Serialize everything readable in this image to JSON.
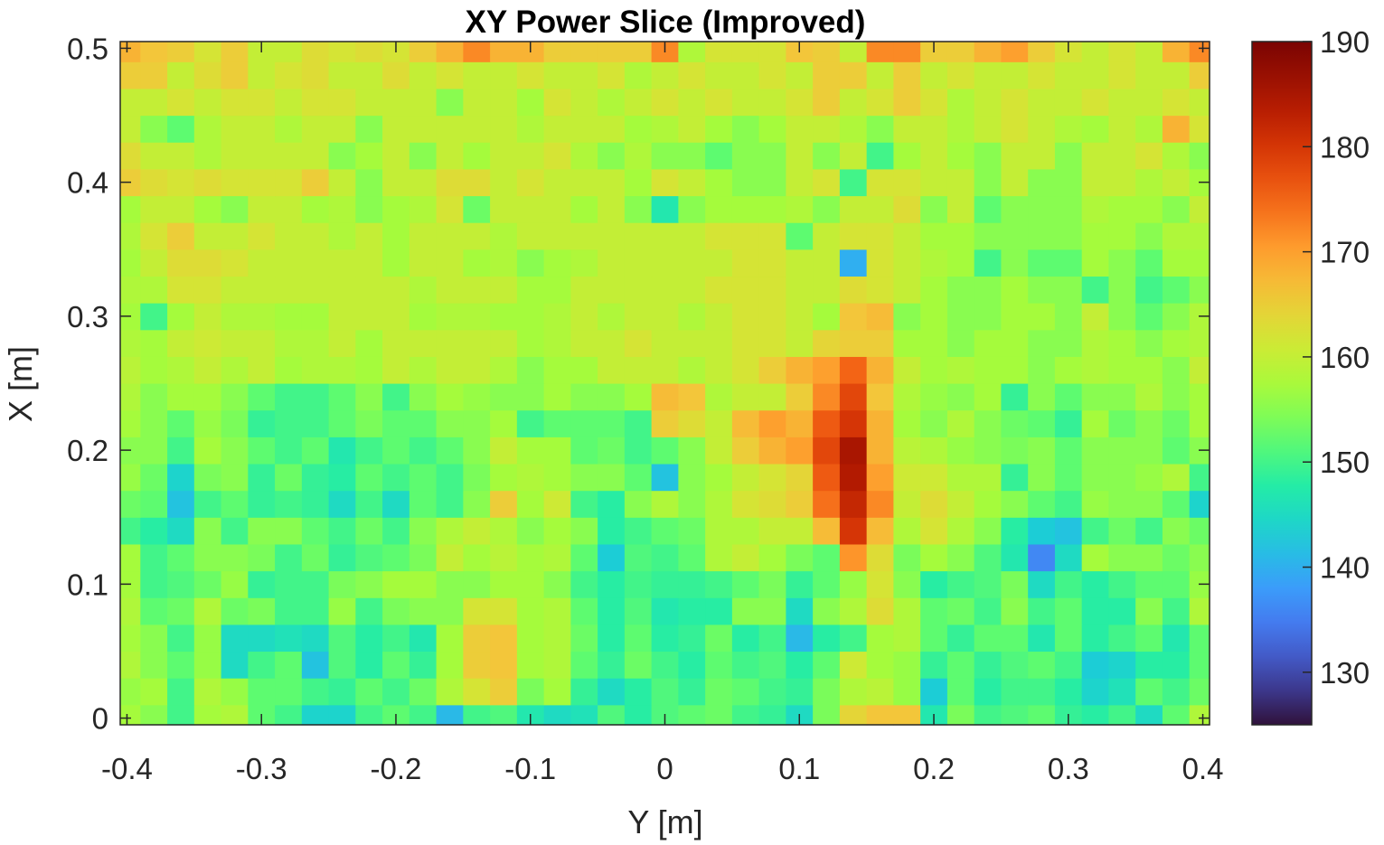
{
  "chart_data": {
    "type": "heatmap",
    "title": "XY Power Slice (Improved)",
    "xlabel": "Y [m]",
    "ylabel": "X [m]",
    "xlim": [
      -0.405,
      0.405
    ],
    "ylim": [
      -0.005,
      0.505
    ],
    "x_ticks": [
      -0.4,
      -0.3,
      -0.2,
      -0.1,
      0,
      0.1,
      0.2,
      0.3,
      0.4
    ],
    "x_tick_labels": [
      "-0.4",
      "-0.3",
      "-0.2",
      "-0.1",
      "0",
      "0.1",
      "0.2",
      "0.3",
      "0.4"
    ],
    "y_ticks": [
      0,
      0.1,
      0.2,
      0.3,
      0.4,
      0.5
    ],
    "y_tick_labels": [
      "0",
      "0.1",
      "0.2",
      "0.3",
      "0.4",
      "0.5"
    ],
    "colorbar": {
      "colormap": "turbo",
      "clim": [
        125,
        190
      ],
      "ticks": [
        130,
        140,
        150,
        160,
        170,
        180,
        190
      ],
      "tick_labels": [
        "130",
        "140",
        "150",
        "160",
        "170",
        "180",
        "190"
      ]
    },
    "grid": false,
    "grid_step": 0.02,
    "x_centers": [
      -0.4,
      -0.38,
      -0.36,
      -0.34,
      -0.32,
      -0.3,
      -0.28,
      -0.26,
      -0.24,
      -0.22,
      -0.2,
      -0.18,
      -0.16,
      -0.14,
      -0.12,
      -0.1,
      -0.08,
      -0.06,
      -0.04,
      -0.02,
      0,
      0.02,
      0.04,
      0.06,
      0.08,
      0.1,
      0.12,
      0.14,
      0.16,
      0.18,
      0.2,
      0.22,
      0.24,
      0.26,
      0.28,
      0.3,
      0.32,
      0.34,
      0.36,
      0.38,
      0.4
    ],
    "y_centers": [
      0,
      0.02,
      0.04,
      0.06,
      0.08,
      0.1,
      0.12,
      0.14,
      0.16,
      0.18,
      0.2,
      0.22,
      0.24,
      0.26,
      0.28,
      0.3,
      0.32,
      0.34,
      0.36,
      0.38,
      0.4,
      0.42,
      0.44,
      0.46,
      0.48,
      0.5
    ],
    "values": [
      [
        157,
        155,
        150,
        157,
        158,
        152,
        150,
        144,
        144,
        150,
        152,
        150,
        141,
        150,
        151,
        147,
        145,
        146,
        151,
        148,
        151,
        152,
        153,
        150,
        149,
        145,
        154,
        164,
        166,
        166,
        147,
        154,
        150,
        151,
        152,
        149,
        148,
        150,
        145,
        152,
        158
      ],
      [
        156,
        157,
        150,
        158,
        156,
        152,
        152,
        150,
        149,
        152,
        150,
        153,
        158,
        162,
        165,
        154,
        157,
        149,
        145,
        148,
        151,
        149,
        153,
        152,
        150,
        149,
        154,
        158,
        159,
        156,
        143,
        152,
        148,
        150,
        150,
        148,
        144,
        146,
        152,
        150,
        153
      ],
      [
        158,
        155,
        152,
        156,
        145,
        150,
        152,
        142,
        151,
        148,
        152,
        149,
        157,
        165,
        166,
        157,
        158,
        152,
        149,
        153,
        150,
        148,
        152,
        150,
        151,
        148,
        152,
        161,
        157,
        156,
        149,
        152,
        149,
        151,
        152,
        150,
        143,
        144,
        148,
        148,
        152
      ],
      [
        157,
        155,
        150,
        156,
        145,
        145,
        146,
        145,
        151,
        148,
        150,
        147,
        157,
        165,
        166,
        157,
        158,
        153,
        148,
        152,
        148,
        149,
        153,
        148,
        150,
        141,
        148,
        150,
        157,
        158,
        152,
        149,
        152,
        152,
        147,
        152,
        148,
        150,
        152,
        147,
        152
      ],
      [
        158,
        152,
        153,
        158,
        153,
        154,
        150,
        150,
        156,
        150,
        154,
        155,
        155,
        162,
        162,
        157,
        158,
        152,
        148,
        151,
        147,
        148,
        148,
        155,
        155,
        145,
        155,
        158,
        163,
        158,
        152,
        153,
        150,
        155,
        150,
        152,
        148,
        148,
        155,
        150,
        158
      ],
      [
        157,
        150,
        151,
        153,
        156,
        149,
        150,
        150,
        154,
        155,
        157,
        157,
        155,
        155,
        157,
        157,
        155,
        150,
        148,
        150,
        149,
        149,
        150,
        152,
        154,
        149,
        152,
        156,
        162,
        155,
        148,
        150,
        151,
        154,
        145,
        150,
        148,
        150,
        152,
        152,
        156
      ],
      [
        157,
        150,
        152,
        155,
        155,
        154,
        150,
        153,
        149,
        151,
        152,
        154,
        160,
        157,
        159,
        157,
        158,
        152,
        143,
        151,
        150,
        152,
        158,
        160,
        157,
        154,
        152,
        171,
        163,
        154,
        157,
        155,
        151,
        147,
        136,
        145,
        157,
        155,
        155,
        153,
        155
      ],
      [
        150,
        148,
        145,
        155,
        150,
        155,
        155,
        152,
        150,
        153,
        150,
        155,
        158,
        160,
        158,
        155,
        157,
        155,
        148,
        150,
        152,
        153,
        158,
        158,
        160,
        160,
        167,
        180,
        167,
        158,
        162,
        158,
        155,
        148,
        143,
        142,
        150,
        153,
        150,
        155,
        153
      ],
      [
        153,
        152,
        142,
        150,
        152,
        149,
        150,
        149,
        145,
        150,
        145,
        152,
        150,
        155,
        165,
        157,
        161,
        150,
        148,
        155,
        158,
        155,
        158,
        162,
        163,
        165,
        174,
        182,
        172,
        160,
        163,
        160,
        157,
        155,
        152,
        150,
        156,
        155,
        155,
        152,
        144
      ],
      [
        156,
        153,
        144,
        154,
        155,
        149,
        153,
        149,
        148,
        152,
        150,
        152,
        150,
        154,
        157,
        158,
        157,
        155,
        155,
        152,
        142,
        155,
        157,
        160,
        162,
        164,
        176,
        184,
        170,
        161,
        161,
        158,
        158,
        149,
        155,
        152,
        155,
        155,
        156,
        158,
        150
      ],
      [
        155,
        155,
        150,
        157,
        155,
        152,
        150,
        152,
        147,
        150,
        152,
        150,
        152,
        155,
        160,
        157,
        157,
        152,
        153,
        150,
        152,
        155,
        160,
        165,
        168,
        170,
        178,
        185,
        168,
        159,
        158,
        156,
        155,
        154,
        155,
        152,
        155,
        155,
        155,
        152,
        155
      ],
      [
        157,
        155,
        152,
        156,
        154,
        149,
        150,
        150,
        152,
        154,
        152,
        152,
        155,
        155,
        157,
        150,
        152,
        152,
        152,
        150,
        165,
        163,
        160,
        167,
        170,
        168,
        176,
        180,
        168,
        157,
        155,
        158,
        155,
        153,
        152,
        149,
        157,
        153,
        155,
        153,
        157
      ],
      [
        158,
        155,
        157,
        157,
        155,
        152,
        150,
        150,
        152,
        155,
        150,
        155,
        157,
        156,
        155,
        155,
        157,
        155,
        155,
        157,
        167,
        166,
        158,
        160,
        160,
        165,
        172,
        178,
        166,
        158,
        156,
        155,
        157,
        149,
        155,
        152,
        155,
        155,
        158,
        155,
        157
      ],
      [
        159,
        157,
        158,
        160,
        158,
        160,
        157,
        158,
        158,
        157,
        160,
        158,
        160,
        160,
        158,
        155,
        157,
        157,
        160,
        160,
        160,
        158,
        160,
        162,
        165,
        168,
        170,
        175,
        168,
        160,
        157,
        158,
        157,
        157,
        155,
        157,
        158,
        157,
        157,
        155,
        160
      ],
      [
        158,
        157,
        160,
        161,
        160,
        160,
        158,
        158,
        160,
        157,
        160,
        160,
        160,
        160,
        160,
        157,
        158,
        160,
        160,
        162,
        160,
        160,
        160,
        162,
        162,
        160,
        164,
        165,
        165,
        157,
        157,
        155,
        157,
        157,
        155,
        155,
        158,
        157,
        155,
        157,
        158
      ],
      [
        157,
        150,
        157,
        160,
        158,
        158,
        157,
        157,
        160,
        160,
        160,
        157,
        158,
        158,
        157,
        157,
        158,
        160,
        158,
        160,
        160,
        158,
        160,
        162,
        162,
        160,
        157,
        166,
        167,
        155,
        157,
        155,
        155,
        157,
        157,
        155,
        160,
        155,
        152,
        155,
        158
      ],
      [
        158,
        158,
        162,
        162,
        160,
        160,
        160,
        160,
        160,
        160,
        160,
        158,
        160,
        160,
        160,
        157,
        157,
        160,
        160,
        160,
        160,
        160,
        162,
        162,
        162,
        160,
        160,
        163,
        162,
        160,
        157,
        155,
        155,
        157,
        155,
        155,
        150,
        155,
        150,
        152,
        155
      ],
      [
        157,
        160,
        163,
        163,
        162,
        160,
        160,
        160,
        160,
        160,
        157,
        160,
        160,
        157,
        158,
        155,
        157,
        158,
        160,
        160,
        160,
        160,
        160,
        162,
        162,
        160,
        160,
        140,
        162,
        160,
        158,
        157,
        150,
        155,
        152,
        152,
        157,
        155,
        152,
        157,
        157
      ],
      [
        158,
        162,
        165,
        160,
        160,
        162,
        160,
        160,
        158,
        160,
        157,
        160,
        160,
        160,
        158,
        160,
        160,
        160,
        160,
        160,
        160,
        160,
        162,
        162,
        162,
        152,
        160,
        162,
        162,
        160,
        157,
        157,
        155,
        155,
        155,
        155,
        157,
        157,
        155,
        158,
        158
      ],
      [
        157,
        160,
        160,
        157,
        155,
        160,
        160,
        157,
        158,
        155,
        157,
        158,
        162,
        153,
        160,
        160,
        160,
        157,
        160,
        155,
        147,
        155,
        157,
        157,
        157,
        158,
        155,
        160,
        160,
        163,
        155,
        160,
        152,
        155,
        155,
        155,
        158,
        157,
        157,
        155,
        160
      ],
      [
        165,
        163,
        162,
        163,
        162,
        162,
        162,
        165,
        160,
        155,
        160,
        160,
        163,
        163,
        160,
        162,
        160,
        160,
        160,
        157,
        162,
        160,
        157,
        155,
        155,
        160,
        162,
        150,
        162,
        162,
        160,
        160,
        155,
        160,
        155,
        155,
        160,
        160,
        158,
        160,
        157
      ],
      [
        163,
        160,
        160,
        158,
        160,
        160,
        160,
        160,
        155,
        157,
        160,
        155,
        160,
        157,
        160,
        160,
        162,
        158,
        155,
        158,
        155,
        155,
        152,
        155,
        155,
        160,
        155,
        160,
        150,
        157,
        160,
        157,
        155,
        160,
        160,
        155,
        160,
        160,
        162,
        158,
        155
      ],
      [
        160,
        155,
        152,
        158,
        160,
        160,
        158,
        160,
        160,
        155,
        160,
        160,
        160,
        160,
        160,
        158,
        160,
        160,
        160,
        157,
        158,
        160,
        157,
        155,
        157,
        160,
        160,
        158,
        155,
        160,
        160,
        158,
        160,
        162,
        160,
        158,
        157,
        160,
        158,
        168,
        162
      ],
      [
        160,
        160,
        162,
        160,
        162,
        162,
        160,
        162,
        162,
        160,
        160,
        160,
        155,
        160,
        160,
        157,
        162,
        160,
        158,
        160,
        162,
        160,
        162,
        160,
        160,
        162,
        165,
        160,
        162,
        165,
        162,
        158,
        160,
        162,
        160,
        160,
        162,
        160,
        160,
        162,
        160
      ],
      [
        165,
        165,
        160,
        163,
        165,
        160,
        162,
        163,
        160,
        160,
        163,
        160,
        162,
        160,
        160,
        162,
        160,
        160,
        162,
        158,
        160,
        162,
        160,
        160,
        162,
        160,
        165,
        165,
        160,
        165,
        160,
        162,
        160,
        160,
        162,
        160,
        160,
        162,
        160,
        160,
        165
      ],
      [
        168,
        166,
        165,
        162,
        165,
        160,
        160,
        163,
        162,
        163,
        162,
        165,
        168,
        172,
        168,
        168,
        165,
        165,
        165,
        165,
        172,
        158,
        162,
        162,
        162,
        166,
        165,
        160,
        172,
        172,
        165,
        165,
        168,
        170,
        165,
        162,
        160,
        162,
        160,
        168,
        172
      ]
    ]
  }
}
